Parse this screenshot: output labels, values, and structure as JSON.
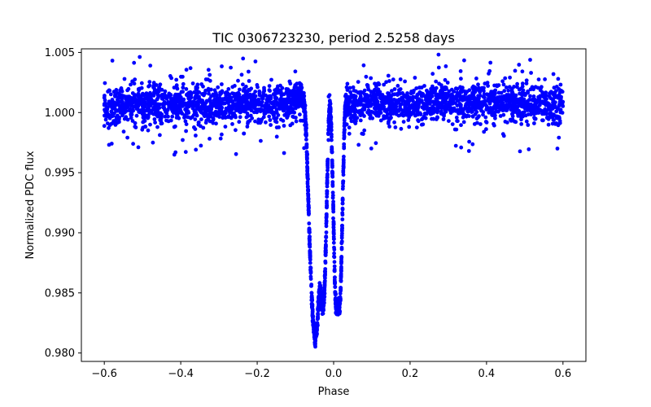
{
  "chart_data": {
    "type": "scatter",
    "title": "TIC 0306723230, period 2.5258 days",
    "xlabel": "Phase",
    "ylabel": "Normalized PDC flux",
    "xlim": [
      -0.66,
      0.66
    ],
    "ylim": [
      0.9793,
      1.0053
    ],
    "x_ticks": [
      -0.6,
      -0.4,
      -0.2,
      0.0,
      0.2,
      0.4,
      0.6
    ],
    "x_tick_labels": [
      "−0.6",
      "−0.4",
      "−0.2",
      "0.0",
      "0.2",
      "0.4",
      "0.6"
    ],
    "y_ticks": [
      0.98,
      0.985,
      0.99,
      0.995,
      1.0,
      1.005
    ],
    "y_tick_labels": [
      "0.980",
      "0.985",
      "0.990",
      "0.995",
      "1.000",
      "1.005"
    ],
    "grid": false,
    "series": [
      {
        "name": "flux",
        "color": "#0000ff",
        "marker": "circle",
        "baseline": 1.0007,
        "x": [
          -0.6,
          -0.56,
          -0.52,
          -0.48,
          -0.44,
          -0.4,
          -0.36,
          -0.32,
          -0.28,
          -0.24,
          -0.2,
          -0.16,
          -0.12,
          -0.1,
          -0.09,
          -0.085,
          -0.08,
          -0.078,
          -0.075,
          -0.072,
          -0.07,
          -0.068,
          -0.066,
          -0.064,
          -0.062,
          -0.06,
          -0.058,
          -0.056,
          -0.054,
          -0.052,
          -0.05,
          -0.048,
          -0.046,
          -0.044,
          -0.042,
          -0.04,
          -0.038,
          -0.036,
          -0.034,
          -0.032,
          -0.03,
          -0.028,
          -0.026,
          -0.024,
          -0.022,
          -0.02,
          -0.018,
          -0.016,
          -0.014,
          -0.012,
          -0.01,
          -0.008,
          -0.006,
          -0.004,
          -0.002,
          0.0,
          0.002,
          0.004,
          0.006,
          0.008,
          0.01,
          0.012,
          0.014,
          0.016,
          0.018,
          0.02,
          0.022,
          0.024,
          0.026,
          0.028,
          0.03,
          0.034,
          0.04,
          0.08,
          0.12,
          0.16,
          0.2,
          0.24,
          0.28,
          0.32,
          0.36,
          0.4,
          0.44,
          0.48,
          0.52,
          0.56,
          0.6
        ],
        "y": [
          1.0007,
          1.0006,
          1.0008,
          1.0007,
          1.0007,
          1.0008,
          1.0007,
          1.0006,
          1.0007,
          1.0008,
          1.0007,
          1.0007,
          1.0007,
          1.001,
          1.0012,
          1.0012,
          1.0011,
          1.0008,
          1.0,
          0.9985,
          0.9965,
          0.9945,
          0.9925,
          0.9905,
          0.9885,
          0.9868,
          0.9852,
          0.9838,
          0.9828,
          0.982,
          0.9815,
          0.9812,
          0.9815,
          0.982,
          0.9828,
          0.9838,
          0.9848,
          0.9855,
          0.985,
          0.9843,
          0.9839,
          0.9838,
          0.9843,
          0.9852,
          0.987,
          0.9895,
          0.9925,
          0.9955,
          0.998,
          0.9998,
          1.0007,
          1.0,
          0.9985,
          0.9962,
          0.9935,
          0.9905,
          0.9875,
          0.985,
          0.9838,
          0.9837,
          0.9838,
          0.9837,
          0.9838,
          0.984,
          0.985,
          0.987,
          0.99,
          0.993,
          0.996,
          0.9985,
          1.0003,
          1.0007,
          1.0007,
          1.0007,
          1.0008,
          1.0007,
          1.0006,
          1.0007,
          1.0008,
          1.0007,
          1.0007,
          1.0006,
          1.0008,
          1.0007,
          1.0007,
          1.0006,
          1.0007
        ]
      }
    ]
  }
}
